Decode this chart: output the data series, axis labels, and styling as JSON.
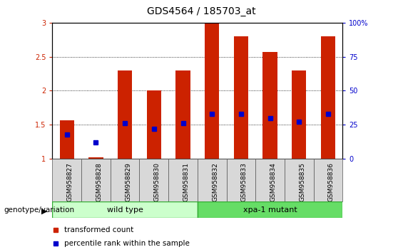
{
  "title": "GDS4564 / 185703_at",
  "samples": [
    "GSM958827",
    "GSM958828",
    "GSM958829",
    "GSM958830",
    "GSM958831",
    "GSM958832",
    "GSM958833",
    "GSM958834",
    "GSM958835",
    "GSM958836"
  ],
  "transformed_count": [
    1.57,
    1.02,
    2.3,
    2.0,
    2.3,
    3.0,
    2.8,
    2.57,
    2.3,
    2.8
  ],
  "percentile_rank_pct": [
    18,
    12,
    26,
    22,
    26,
    33,
    33,
    30,
    27,
    33
  ],
  "ylim_left": [
    1.0,
    3.0
  ],
  "ylim_right": [
    0,
    100
  ],
  "yticks_left": [
    1.0,
    1.5,
    2.0,
    2.5,
    3.0
  ],
  "yticks_right": [
    0,
    25,
    50,
    75,
    100
  ],
  "bar_color": "#cc2200",
  "dot_color": "#0000cc",
  "bar_bottom": 1.0,
  "wild_type_label": "wild type",
  "mutant_label": "xpa-1 mutant",
  "group_label": "genotype/variation",
  "wild_type_color": "#ccffcc",
  "mutant_color": "#66dd66",
  "border_color": "#33aa33",
  "legend_transformed": "transformed count",
  "legend_percentile": "percentile rank within the sample",
  "bar_width": 0.5,
  "title_fontsize": 10,
  "tick_fontsize": 7,
  "label_fontsize": 8,
  "dot_size": 4
}
